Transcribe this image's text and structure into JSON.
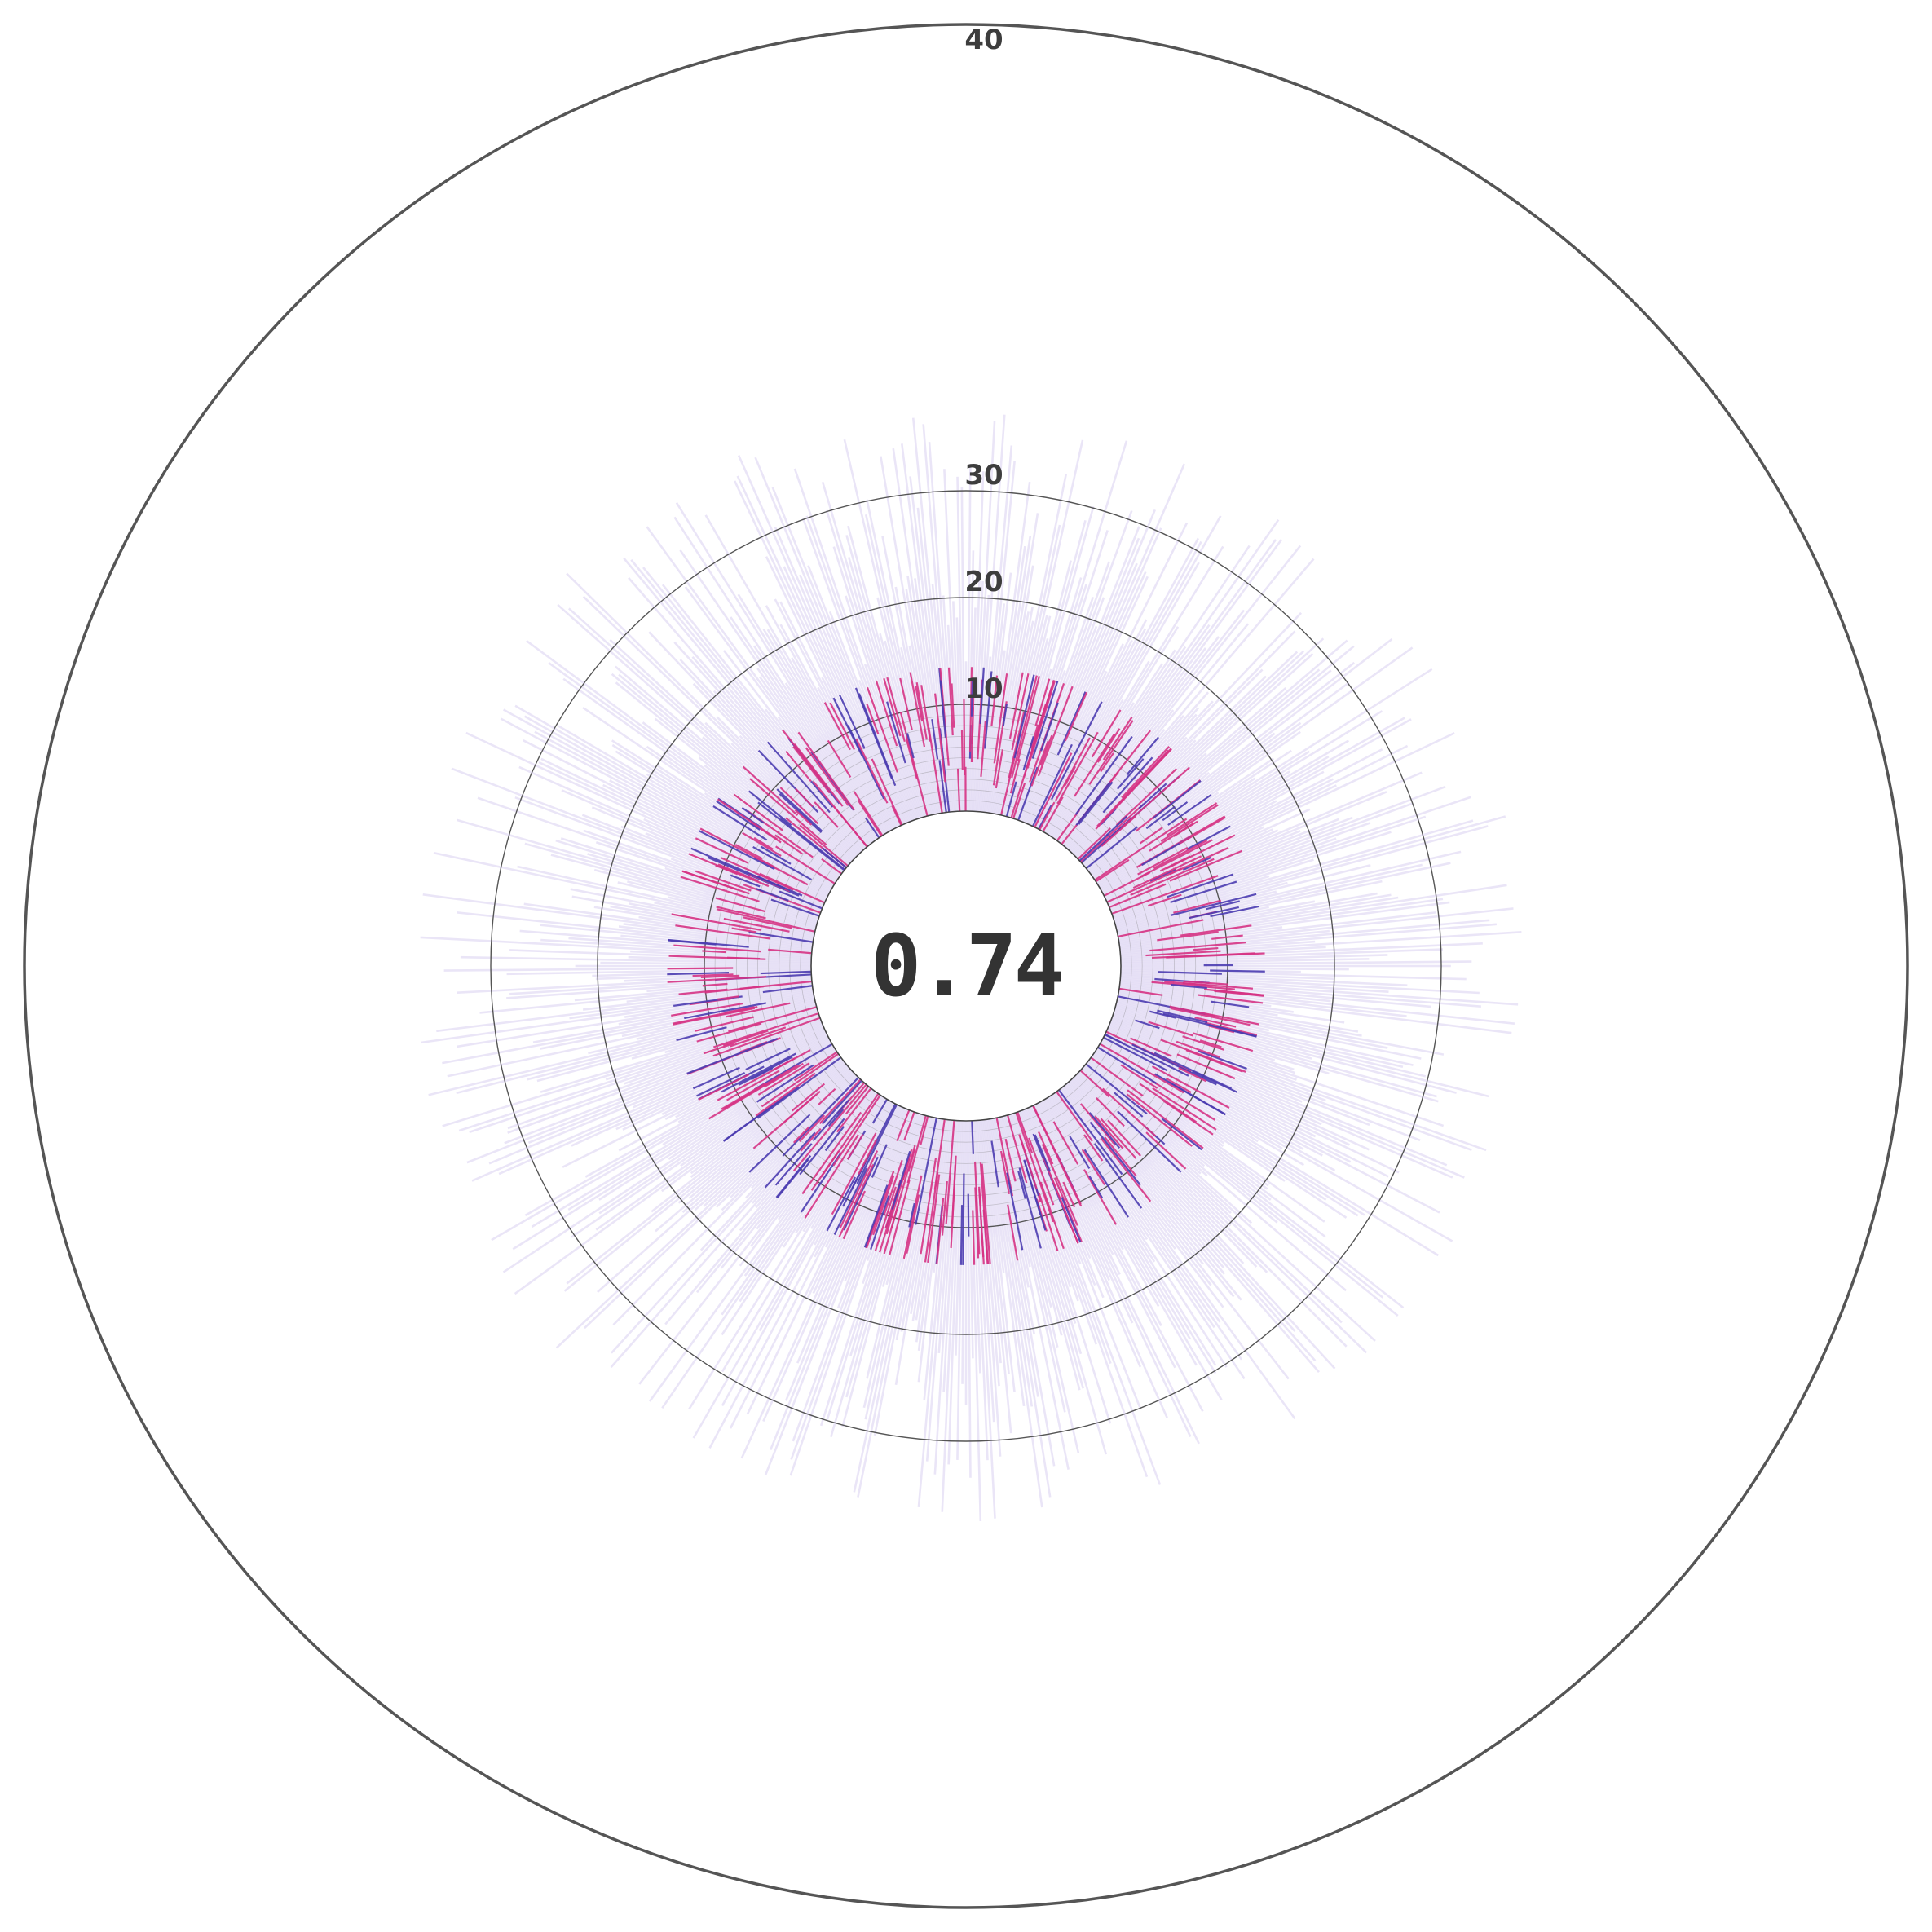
{
  "chart_data": {
    "type": "radial-bar",
    "center_value": "0.74",
    "radial_ticks": [
      {
        "value": 10,
        "label": "10"
      },
      {
        "value": 20,
        "label": "20"
      },
      {
        "value": 30,
        "label": "30"
      },
      {
        "value": 40,
        "label": "40"
      }
    ],
    "ylim": [
      0,
      40
    ],
    "grid": true,
    "bar_count": 720,
    "colors": {
      "background_bar": "#e3dcf4",
      "highlight_primary": "#d63384",
      "highlight_secondary": "#4b3cb0",
      "inner_fill": "#e6dcf4",
      "ring": "#555555"
    },
    "series": [
      {
        "name": "",
        "style": "background",
        "description_range": [
          15,
          40
        ]
      },
      {
        "name": "",
        "style": "highlight",
        "description_range": [
          0,
          15
        ]
      }
    ]
  }
}
